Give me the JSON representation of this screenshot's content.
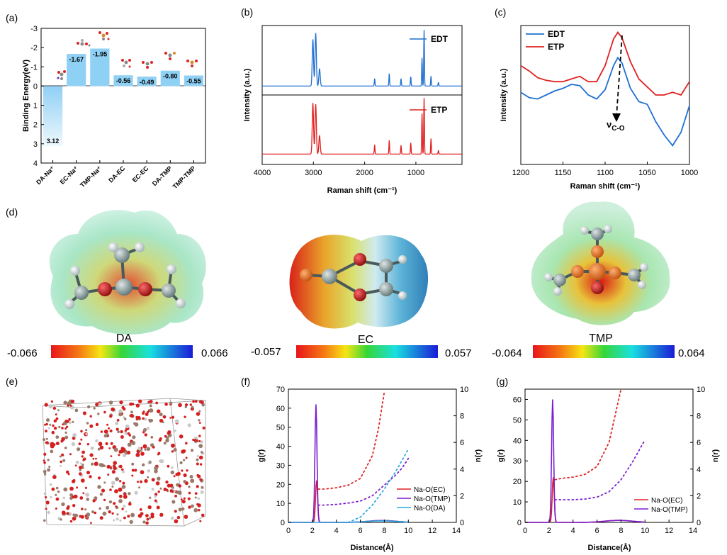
{
  "panel_labels": [
    "(a)",
    "(b)",
    "(c)",
    "(d)",
    "(e)",
    "(f)",
    "(g)"
  ],
  "chart_data": [
    {
      "id": "a",
      "type": "bar",
      "title": "",
      "xlabel": "",
      "ylabel": "Binding Energy(eV)",
      "categories": [
        "DA-Na⁺",
        "EC-Na⁺",
        "TMP-Na⁺",
        "DA-EC",
        "EC-EC",
        "DA-TMP",
        "TMP-TMP"
      ],
      "values": [
        3.12,
        -1.67,
        -1.95,
        -0.56,
        -0.49,
        -0.8,
        -0.55
      ],
      "value_labels": [
        "3.12",
        "-1.67",
        "-1.95",
        "-0.56",
        "-0.49",
        "-0.80",
        "-0.55"
      ],
      "ylim": [
        4,
        -3
      ],
      "yticks": [
        "-3",
        "-2",
        "-1",
        "0",
        "1",
        "2",
        "3",
        "4"
      ],
      "bar_color": "#8fd0f5"
    },
    {
      "id": "b",
      "type": "line",
      "xlabel": "Raman shift (cm⁻¹)",
      "ylabel": "Intensity (a.u.)",
      "xlim": [
        4000,
        100
      ],
      "xticks": [
        "4000",
        "3000",
        "2000",
        "1000"
      ],
      "series": [
        {
          "name": "EDT",
          "color": "#1f6fd1",
          "peaks": [
            [
              3010,
              0.75
            ],
            [
              2955,
              0.85
            ],
            [
              2880,
              0.28
            ],
            [
              1805,
              0.12
            ],
            [
              1520,
              0.2
            ],
            [
              1290,
              0.12
            ],
            [
              1100,
              0.15
            ],
            [
              880,
              0.45
            ],
            [
              840,
              0.9
            ],
            [
              705,
              0.16
            ],
            [
              560,
              0.06
            ]
          ]
        },
        {
          "name": "ETP",
          "color": "#e02020",
          "peaks": [
            [
              3010,
              0.82
            ],
            [
              2955,
              0.8
            ],
            [
              2880,
              0.3
            ],
            [
              1805,
              0.15
            ],
            [
              1520,
              0.22
            ],
            [
              1290,
              0.14
            ],
            [
              1100,
              0.18
            ],
            [
              880,
              0.65
            ],
            [
              840,
              0.9
            ],
            [
              705,
              0.25
            ],
            [
              560,
              0.06
            ]
          ]
        }
      ]
    },
    {
      "id": "c",
      "type": "line",
      "xlabel": "Raman shift (cm⁻¹)",
      "ylabel": "Intensity (a.u.)",
      "xlim": [
        1200,
        1000
      ],
      "xticks": [
        "1200",
        "1150",
        "1100",
        "1050",
        "1000"
      ],
      "annotation": "ν",
      "annotation_sub": "C-O",
      "series": [
        {
          "name": "EDT",
          "color": "#1f6fd1",
          "x": [
            1200,
            1190,
            1180,
            1170,
            1160,
            1150,
            1140,
            1130,
            1120,
            1110,
            1100,
            1090,
            1085,
            1080,
            1070,
            1060,
            1050,
            1040,
            1030,
            1020,
            1010,
            1000
          ],
          "y": [
            0.52,
            0.48,
            0.47,
            0.5,
            0.53,
            0.55,
            0.58,
            0.57,
            0.5,
            0.47,
            0.54,
            0.72,
            0.78,
            0.74,
            0.55,
            0.45,
            0.43,
            0.3,
            0.2,
            0.12,
            0.22,
            0.42
          ]
        },
        {
          "name": "ETP",
          "color": "#e02020",
          "x": [
            1200,
            1190,
            1180,
            1170,
            1160,
            1150,
            1140,
            1130,
            1120,
            1110,
            1100,
            1090,
            1085,
            1080,
            1070,
            1060,
            1050,
            1040,
            1030,
            1020,
            1010,
            1000
          ],
          "y": [
            0.72,
            0.68,
            0.63,
            0.61,
            0.6,
            0.6,
            0.62,
            0.64,
            0.6,
            0.6,
            0.72,
            0.92,
            0.97,
            0.93,
            0.75,
            0.62,
            0.56,
            0.5,
            0.5,
            0.52,
            0.5,
            0.6
          ]
        }
      ]
    },
    {
      "id": "f",
      "type": "line",
      "xlabel": "Distance(Å)",
      "ylabel": "g(r)",
      "y2label": "n(r)",
      "xlim": [
        0,
        14
      ],
      "ylim": [
        0,
        70
      ],
      "y2lim": [
        0,
        10
      ],
      "xticks": [
        "0",
        "2",
        "4",
        "6",
        "8",
        "10",
        "12",
        "14"
      ],
      "yticks": [
        "0",
        "10",
        "20",
        "30",
        "40",
        "50",
        "60",
        "70"
      ],
      "y2ticks": [
        "0",
        "2",
        "4",
        "6",
        "8",
        "10"
      ],
      "series": [
        {
          "name": "Na-O(EC)",
          "color": "#e02020",
          "peak_x": 2.35,
          "peak_g": 22,
          "n_x": [
            2.5,
            3,
            4,
            5,
            6,
            7,
            7.5,
            8
          ],
          "n_y": [
            2.5,
            2.5,
            2.6,
            2.8,
            3.3,
            5.0,
            7.0,
            9.8
          ]
        },
        {
          "name": "Na-O(TMP)",
          "color": "#7b1fd1",
          "peak_x": 2.3,
          "peak_g": 62,
          "n_x": [
            2.5,
            3,
            4,
            5,
            6,
            7,
            8,
            9,
            9.5,
            10
          ],
          "n_y": [
            1.3,
            1.3,
            1.35,
            1.45,
            1.6,
            2.0,
            2.8,
            3.6,
            4.1,
            4.8
          ]
        },
        {
          "name": "Na-O(DA)",
          "color": "#2aa8e0",
          "peak_x": 0,
          "peak_g": 0,
          "n_x": [
            5.0,
            6,
            7,
            8,
            9,
            10
          ],
          "n_y": [
            0.0,
            0.4,
            1.3,
            2.5,
            3.9,
            5.5
          ]
        }
      ]
    },
    {
      "id": "g",
      "type": "line",
      "xlabel": "Distance(Å)",
      "ylabel": "g(r)",
      "y2label": "n(r)",
      "xlim": [
        0,
        14
      ],
      "ylim": [
        0,
        65
      ],
      "y2lim": [
        0,
        10
      ],
      "xticks": [
        "0",
        "2",
        "4",
        "6",
        "8",
        "10",
        "12",
        "14"
      ],
      "yticks": [
        "0",
        "10",
        "20",
        "30",
        "40",
        "50",
        "60"
      ],
      "y2ticks": [
        "0",
        "2",
        "4",
        "6",
        "8",
        "10"
      ],
      "series": [
        {
          "name": "Na-O(EC)",
          "color": "#e02020",
          "peak_x": 2.35,
          "peak_g": 22,
          "n_x": [
            2.5,
            3,
            4,
            5,
            6,
            7,
            7.5,
            8
          ],
          "n_y": [
            3.2,
            3.3,
            3.4,
            3.6,
            4.2,
            6.0,
            8.0,
            10.0
          ]
        },
        {
          "name": "Na-O(TMP)",
          "color": "#7b1fd1",
          "peak_x": 2.3,
          "peak_g": 60,
          "n_x": [
            2.5,
            3,
            4,
            5,
            6,
            7,
            8,
            9,
            10
          ],
          "n_y": [
            1.7,
            1.7,
            1.7,
            1.75,
            1.9,
            2.3,
            3.2,
            4.6,
            6.2
          ]
        }
      ]
    }
  ],
  "esp_panel": {
    "molecules": [
      {
        "name": "DA",
        "min": "-0.066",
        "max": "0.066"
      },
      {
        "name": "EC",
        "min": "-0.057",
        "max": "0.057"
      },
      {
        "name": "TMP",
        "min": "-0.064",
        "max": "0.064"
      }
    ]
  },
  "colors": {
    "axis": "#000000",
    "bar": "#8fd0f5",
    "edt": "#1f6fd1",
    "etp": "#e02020"
  }
}
